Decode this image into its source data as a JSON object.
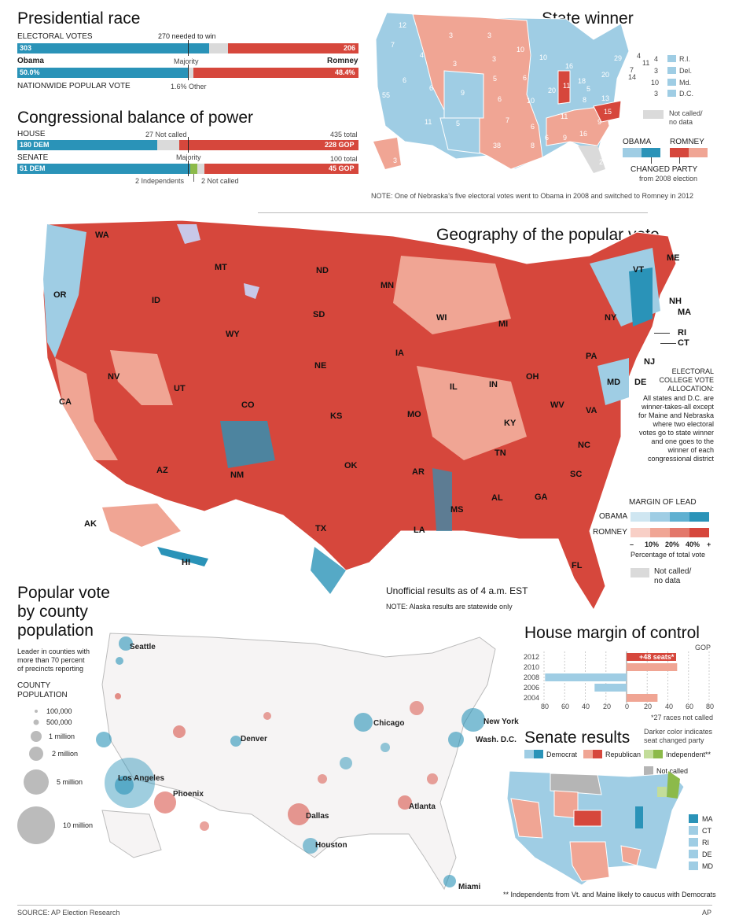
{
  "colors": {
    "obama_light": "#9fcde4",
    "obama_dark": "#2a93b8",
    "romney_light": "#f0a594",
    "romney_dark": "#d6473c",
    "gray": "#dadada",
    "green": "#8cba4a",
    "green_light": "#c3dd9a"
  },
  "presidential": {
    "title": "Presidential race",
    "electoral_label": "ELECTORAL VOTES",
    "needed": "270 needed to win",
    "obama_ev": "303",
    "romney_ev": "206",
    "obama_name": "Obama",
    "majority": "Majority",
    "romney_name": "Romney",
    "obama_pct": "50.0%",
    "romney_pct": "48.4%",
    "popular_label": "NATIONWIDE POPULAR VOTE",
    "other": "1.6% Other",
    "ev_total": 538,
    "obama_ev_value": 303,
    "romney_ev_value": 206,
    "obama_pop_value": 50.0,
    "romney_pop_value": 48.4
  },
  "congress": {
    "title": "Congressional balance of power",
    "house_label": "HOUSE",
    "house_notcalled": "27 Not called",
    "house_total": "435 total",
    "house_dem": "180 DEM",
    "house_gop": "228 GOP",
    "house_dem_value": 180,
    "house_gop_value": 228,
    "house_total_value": 435,
    "senate_label": "SENATE",
    "majority": "Majority",
    "senate_total": "100 total",
    "senate_dem": "51 DEM",
    "senate_gop": "45 GOP",
    "senate_dem_value": 51,
    "senate_ind_value": 2,
    "senate_notcalled_value": 2,
    "senate_gop_value": 45,
    "independents": "2 Independents",
    "not_called": "2 Not called"
  },
  "state_winner": {
    "title": "State winner",
    "small_states": [
      {
        "num": "4",
        "name": "R.I."
      },
      {
        "num": "3",
        "name": "Del."
      },
      {
        "num": "10",
        "name": "Md."
      },
      {
        "num": "3",
        "name": "D.C."
      }
    ],
    "ne_numbers": [
      "4",
      "11",
      "7",
      "14"
    ],
    "not_called": "Not called/",
    "no_data": "no data",
    "obama": "OBAMA",
    "romney": "ROMNEY",
    "changed": "CHANGED PARTY",
    "from": "from 2008 election",
    "note": "NOTE: One of Nebraska’s five electoral votes went to Obama in 2008 and switched to Romney in 2012"
  },
  "geo": {
    "title": "Geography of the popular vote",
    "states": [
      "WA",
      "OR",
      "ID",
      "MT",
      "WY",
      "ND",
      "SD",
      "MN",
      "NE",
      "NV",
      "CA",
      "UT",
      "CO",
      "KS",
      "AZ",
      "NM",
      "OK",
      "TX",
      "IA",
      "WI",
      "MI",
      "IL",
      "IN",
      "OH",
      "MO",
      "KY",
      "AR",
      "TN",
      "LA",
      "MS",
      "AL",
      "GA",
      "SC",
      "NC",
      "VA",
      "WV",
      "PA",
      "NY",
      "VT",
      "NH",
      "ME",
      "MA",
      "RI",
      "CT",
      "NJ",
      "MD",
      "DE",
      "FL",
      "AK",
      "HI"
    ],
    "ec_title": "ELECTORAL COLLEGE VOTE ALLOCATION:",
    "ec_text": "All states and D.C. are winner-takes-all except for Maine and Nebraska where two electoral votes go to state winner and one goes to the winner of each congressional district",
    "margin_title": "MARGIN OF LEAD",
    "obama": "OBAMA",
    "romney": "ROMNEY",
    "scale": [
      "–",
      "10%",
      "20%",
      "40%",
      "+"
    ],
    "pct_label": "Percentage of total vote",
    "not_called": "Not called/",
    "no_data": "no data",
    "unofficial": "Unofficial results as of 4 a.m. EST",
    "note": "NOTE: Alaska results are statewide only"
  },
  "county": {
    "title1": "Popular vote",
    "title2": "by county",
    "title3": "population",
    "leader1": "Leader in counties with",
    "leader2": "more than 70 percent",
    "leader3": "of precincts reporting",
    "pop1": "COUNTY",
    "pop2": "POPULATION",
    "sizes": [
      "100,000",
      "500,000",
      "1 million",
      "2 million",
      "5 million",
      "10 million"
    ],
    "cities": [
      "Seattle",
      "Denver",
      "Los Angeles",
      "Phoenix",
      "Dallas",
      "Houston",
      "Chicago",
      "Atlanta",
      "New York",
      "Wash. D.C.",
      "Miami"
    ]
  },
  "house_margin": {
    "title": "House margin of control",
    "gop": "GOP",
    "years": [
      "2012",
      "2010",
      "2008",
      "2006",
      "2004"
    ],
    "annotation": "+48 seats*",
    "axis": [
      "80",
      "60",
      "40",
      "20",
      "0",
      "20",
      "40",
      "60",
      "80"
    ],
    "footnote": "*27 races not called",
    "chart_data": {
      "type": "bar",
      "categories": [
        "2012",
        "2010",
        "2008",
        "2006",
        "2004"
      ],
      "values": [
        48,
        49,
        -79,
        -31,
        30
      ],
      "xlim": [
        -80,
        80
      ]
    }
  },
  "senate": {
    "title": "Senate results",
    "note1": "Darker color indicates",
    "note2": "seat changed party",
    "democrat": "Democrat",
    "republican": "Republican",
    "independent": "Independent**",
    "not_called": "Not called",
    "small_states": [
      "MA",
      "CT",
      "RI",
      "DE",
      "MD"
    ],
    "footnote": "** Independents from Vt. and Maine likely to caucus with Democrats"
  },
  "footer": {
    "source": "SOURCE: AP Election Research",
    "ap": "AP"
  }
}
